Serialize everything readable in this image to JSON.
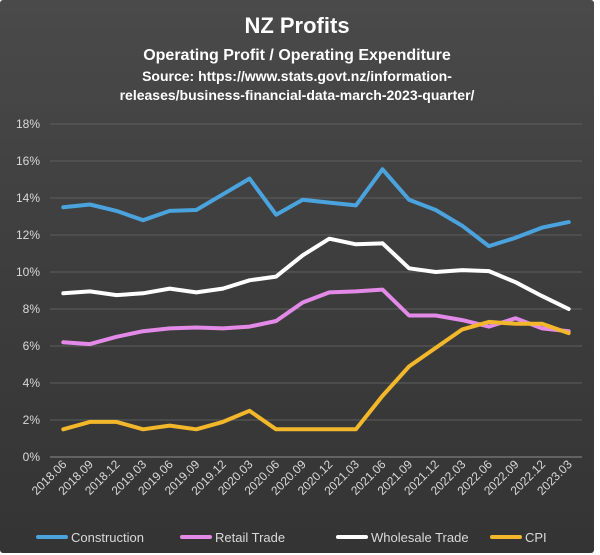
{
  "chart_data": {
    "type": "line",
    "title": "NZ Profits",
    "subtitle": "Operating Profit / Operating Expenditure",
    "source_line1": "Source: https://www.stats.govt.nz/information-",
    "source_line2": "releases/business-financial-data-march-2023-quarter/",
    "xlabel": "",
    "ylabel": "",
    "ylim": [
      0,
      18
    ],
    "y_ticks": [
      "0%",
      "2%",
      "4%",
      "6%",
      "8%",
      "10%",
      "12%",
      "14%",
      "16%",
      "18%"
    ],
    "grid": true,
    "legend_position": "bottom",
    "categories": [
      "2018.06",
      "2018.09",
      "2018.12",
      "2019.03",
      "2019.06",
      "2019.09",
      "2019.12",
      "2020.03",
      "2020.06",
      "2020.09",
      "2020.12",
      "2021.03",
      "2021.06",
      "2021.09",
      "2021.12",
      "2022.03",
      "2022.06",
      "2022.09",
      "2022.12",
      "2023.03"
    ],
    "series": [
      {
        "name": "Construction",
        "color": "#4ba3de",
        "values": [
          13.5,
          13.65,
          13.3,
          12.8,
          13.3,
          13.35,
          14.2,
          15.05,
          13.1,
          13.9,
          13.75,
          13.6,
          15.55,
          13.9,
          13.35,
          12.5,
          11.4,
          11.85,
          12.4,
          12.7
        ]
      },
      {
        "name": "Retail Trade",
        "color": "#e38ae8",
        "values": [
          6.2,
          6.1,
          6.5,
          6.8,
          6.95,
          7.0,
          6.95,
          7.05,
          7.35,
          8.35,
          8.9,
          8.95,
          9.05,
          7.65,
          7.65,
          7.4,
          7.05,
          7.5,
          6.95,
          6.8
        ]
      },
      {
        "name": "Wholesale Trade",
        "color": "#ffffff",
        "values": [
          8.85,
          8.95,
          8.75,
          8.85,
          9.1,
          8.9,
          9.1,
          9.55,
          9.75,
          10.9,
          11.8,
          11.5,
          11.55,
          10.2,
          10.0,
          10.1,
          10.05,
          9.45,
          8.7,
          8.0
        ]
      },
      {
        "name": "CPI",
        "color": "#f2b72b",
        "values": [
          1.5,
          1.9,
          1.9,
          1.5,
          1.7,
          1.5,
          1.9,
          2.5,
          1.5,
          1.5,
          1.5,
          1.5,
          3.3,
          4.9,
          5.9,
          6.9,
          7.3,
          7.2,
          7.2,
          6.7
        ]
      }
    ]
  }
}
